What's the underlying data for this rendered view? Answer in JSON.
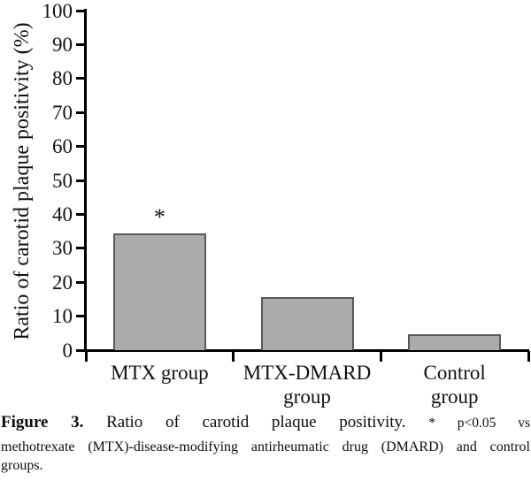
{
  "chart_data": {
    "type": "bar",
    "title": "",
    "xlabel": "",
    "ylabel": "Ratio of carotid plaque positivity (%)",
    "ylim": [
      0,
      100
    ],
    "ytick_labels": [
      "0",
      "10",
      "20",
      "30",
      "40",
      "50",
      "60",
      "70",
      "80",
      "90",
      "100"
    ],
    "categories": [
      [
        "MTX group"
      ],
      [
        "MTX-DMARD",
        "group"
      ],
      [
        "Control",
        "group"
      ]
    ],
    "values": [
      34.5,
      15.5,
      4.8
    ],
    "annotations": [
      {
        "bar": 0,
        "text": "*"
      }
    ],
    "grid": false,
    "legend": false,
    "colors": {
      "bar_fill": "#ababab",
      "bar_border": "#595959",
      "axis": "#000000",
      "text": "#111111",
      "background": "#ffffff"
    }
  },
  "caption": {
    "label": "Figure 3.",
    "title": "Ratio of carotid plaque positivity.",
    "note_lead": "* p<0.05 vs",
    "note_rest": "methotrexate (MTX)-disease-modifying antirheumatic drug (DMARD) and control groups."
  }
}
